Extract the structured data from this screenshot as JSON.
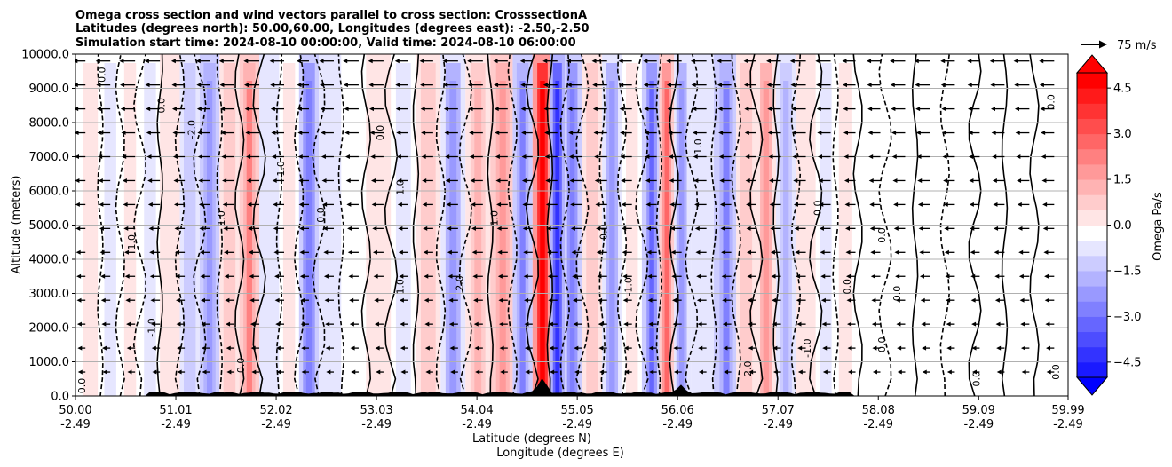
{
  "chart_data": {
    "type": "contour-cross-section",
    "title_lines": [
      "Omega cross section and wind vectors parallel to cross section: CrosssectionA",
      "Latitudes (degrees north): 50.00,60.00, Longitudes (degrees east): -2.50,-2.50",
      "Simulation start time: 2024-08-10 00:00:00, Valid time: 2024-08-10 06:00:00"
    ],
    "ylabel": "Altitude (meters)",
    "xlabel_lines": [
      "Latitude (degrees N)",
      "Longitude (degrees E)"
    ],
    "xlim": [
      50.0,
      59.99
    ],
    "ylim": [
      0,
      10000
    ],
    "x_ticks": [
      {
        "lat": "50.00",
        "lon": "-2.49",
        "value": 50.0
      },
      {
        "lat": "51.01",
        "lon": "-2.49",
        "value": 51.01
      },
      {
        "lat": "52.02",
        "lon": "-2.49",
        "value": 52.02
      },
      {
        "lat": "53.03",
        "lon": "-2.49",
        "value": 53.03
      },
      {
        "lat": "54.04",
        "lon": "-2.49",
        "value": 54.04
      },
      {
        "lat": "55.05",
        "lon": "-2.49",
        "value": 55.05
      },
      {
        "lat": "56.06",
        "lon": "-2.49",
        "value": 56.06
      },
      {
        "lat": "57.07",
        "lon": "-2.49",
        "value": 57.07
      },
      {
        "lat": "58.08",
        "lon": "-2.49",
        "value": 58.08
      },
      {
        "lat": "59.09",
        "lon": "-2.49",
        "value": 59.09
      },
      {
        "lat": "59.99",
        "lon": "-2.49",
        "value": 59.99
      }
    ],
    "y_ticks": [
      {
        "label": "10000.0",
        "value": 10000
      },
      {
        "label": "9000.0",
        "value": 9000
      },
      {
        "label": "8000.0",
        "value": 8000
      },
      {
        "label": "7000.0",
        "value": 7000
      },
      {
        "label": "6000.0",
        "value": 6000
      },
      {
        "label": "5000.0",
        "value": 5000
      },
      {
        "label": "4000.0",
        "value": 4000
      },
      {
        "label": "3000.0",
        "value": 3000
      },
      {
        "label": "2000.0",
        "value": 2000
      },
      {
        "label": "1000.0",
        "value": 1000
      },
      {
        "label": "0.0",
        "value": 0
      }
    ],
    "grid": "horizontal",
    "colorbar": {
      "label": "Omega Pa/s",
      "range": [
        -5.0,
        5.0
      ],
      "ticks": [
        {
          "label": "4.5",
          "value": 4.5
        },
        {
          "label": "3.0",
          "value": 3.0
        },
        {
          "label": "1.5",
          "value": 1.5
        },
        {
          "label": "0.0",
          "value": 0.0
        },
        {
          "label": "−1.5",
          "value": -1.5
        },
        {
          "label": "−3.0",
          "value": -3.0
        },
        {
          "label": "−4.5",
          "value": -4.5
        }
      ],
      "extend": "both",
      "colormap": "bwr",
      "low_color": "#0000ff",
      "mid_color": "#ffffff",
      "high_color": "#ff0000"
    },
    "quiver_key": {
      "label": "75 m/s",
      "speed_ms": 75
    },
    "omega_columns": [
      {
        "lat": 50.15,
        "omega": 0.6
      },
      {
        "lat": 50.35,
        "omega": -0.7
      },
      {
        "lat": 50.55,
        "omega": 0.4
      },
      {
        "lat": 50.75,
        "omega": -0.5
      },
      {
        "lat": 50.95,
        "omega": 0.9
      },
      {
        "lat": 51.15,
        "omega": -1.2
      },
      {
        "lat": 51.35,
        "omega": -2.2
      },
      {
        "lat": 51.55,
        "omega": 1.1
      },
      {
        "lat": 51.75,
        "omega": 2.4
      },
      {
        "lat": 51.95,
        "omega": -1.0
      },
      {
        "lat": 52.15,
        "omega": 0.5
      },
      {
        "lat": 52.35,
        "omega": -2.6
      },
      {
        "lat": 52.55,
        "omega": -0.8
      },
      {
        "lat": 52.8,
        "omega": 0.3
      },
      {
        "lat": 53.05,
        "omega": 0.8
      },
      {
        "lat": 53.3,
        "omega": -0.6
      },
      {
        "lat": 53.55,
        "omega": 1.2
      },
      {
        "lat": 53.8,
        "omega": -1.8
      },
      {
        "lat": 54.05,
        "omega": 1.6
      },
      {
        "lat": 54.3,
        "omega": 2.2
      },
      {
        "lat": 54.5,
        "omega": -2.4
      },
      {
        "lat": 54.7,
        "omega": 5.5
      },
      {
        "lat": 54.85,
        "omega": -4.2
      },
      {
        "lat": 55.0,
        "omega": -2.6
      },
      {
        "lat": 55.2,
        "omega": 1.4
      },
      {
        "lat": 55.4,
        "omega": -1.9
      },
      {
        "lat": 55.6,
        "omega": 0.7
      },
      {
        "lat": 55.8,
        "omega": -3.2
      },
      {
        "lat": 55.95,
        "omega": 3.0
      },
      {
        "lat": 56.1,
        "omega": -2.1
      },
      {
        "lat": 56.3,
        "omega": -0.9
      },
      {
        "lat": 56.55,
        "omega": -2.4
      },
      {
        "lat": 56.75,
        "omega": 1.3
      },
      {
        "lat": 56.95,
        "omega": 2.0
      },
      {
        "lat": 57.15,
        "omega": -1.6
      },
      {
        "lat": 57.35,
        "omega": 1.0
      },
      {
        "lat": 57.55,
        "omega": -0.6
      },
      {
        "lat": 57.75,
        "omega": 0.5
      },
      {
        "lat": 58.0,
        "omega": -0.3
      },
      {
        "lat": 58.3,
        "omega": 0.2
      },
      {
        "lat": 58.6,
        "omega": -0.2
      },
      {
        "lat": 58.9,
        "omega": 0.15
      },
      {
        "lat": 59.2,
        "omega": -0.1
      },
      {
        "lat": 59.5,
        "omega": 0.2
      },
      {
        "lat": 59.8,
        "omega": 0.1
      }
    ],
    "contour_labels": [
      {
        "text": "0.0",
        "lat": 50.1,
        "alt": 300
      },
      {
        "text": "0.0",
        "lat": 50.3,
        "alt": 9400
      },
      {
        "text": "1.0",
        "lat": 50.6,
        "alt": 4500
      },
      {
        "text": "-1.0",
        "lat": 50.8,
        "alt": 2000
      },
      {
        "text": "0.0",
        "lat": 50.9,
        "alt": 8500
      },
      {
        "text": "-2.0",
        "lat": 51.2,
        "alt": 7800
      },
      {
        "text": "1.0",
        "lat": 51.5,
        "alt": 5200
      },
      {
        "text": "0.0",
        "lat": 51.7,
        "alt": 900
      },
      {
        "text": "-1.0",
        "lat": 52.1,
        "alt": 6600
      },
      {
        "text": "0.0",
        "lat": 52.5,
        "alt": 5300
      },
      {
        "text": "0.0",
        "lat": 53.1,
        "alt": 7700
      },
      {
        "text": "1.0",
        "lat": 53.3,
        "alt": 3200
      },
      {
        "text": "1.0",
        "lat": 53.3,
        "alt": 6100
      },
      {
        "text": "2.0",
        "lat": 53.9,
        "alt": 3300
      },
      {
        "text": "1.0",
        "lat": 54.25,
        "alt": 5200
      },
      {
        "text": "0.0",
        "lat": 55.35,
        "alt": 4800
      },
      {
        "text": "-1.0",
        "lat": 55.6,
        "alt": 3200
      },
      {
        "text": "1.0",
        "lat": 56.3,
        "alt": 7300
      },
      {
        "text": "2.0",
        "lat": 56.8,
        "alt": 800
      },
      {
        "text": "0.0",
        "lat": 57.5,
        "alt": 5500
      },
      {
        "text": "-1.0",
        "lat": 57.4,
        "alt": 1400
      },
      {
        "text": "0.0",
        "lat": 57.8,
        "alt": 3200
      },
      {
        "text": "0.0",
        "lat": 58.15,
        "alt": 4700
      },
      {
        "text": "0.0",
        "lat": 58.15,
        "alt": 1500
      },
      {
        "text": "0.0",
        "lat": 58.3,
        "alt": 3000
      },
      {
        "text": "0.0",
        "lat": 59.1,
        "alt": 500
      },
      {
        "text": "0.0",
        "lat": 59.9,
        "alt": 700
      },
      {
        "text": "0.0",
        "lat": 59.85,
        "alt": 8600
      }
    ]
  }
}
